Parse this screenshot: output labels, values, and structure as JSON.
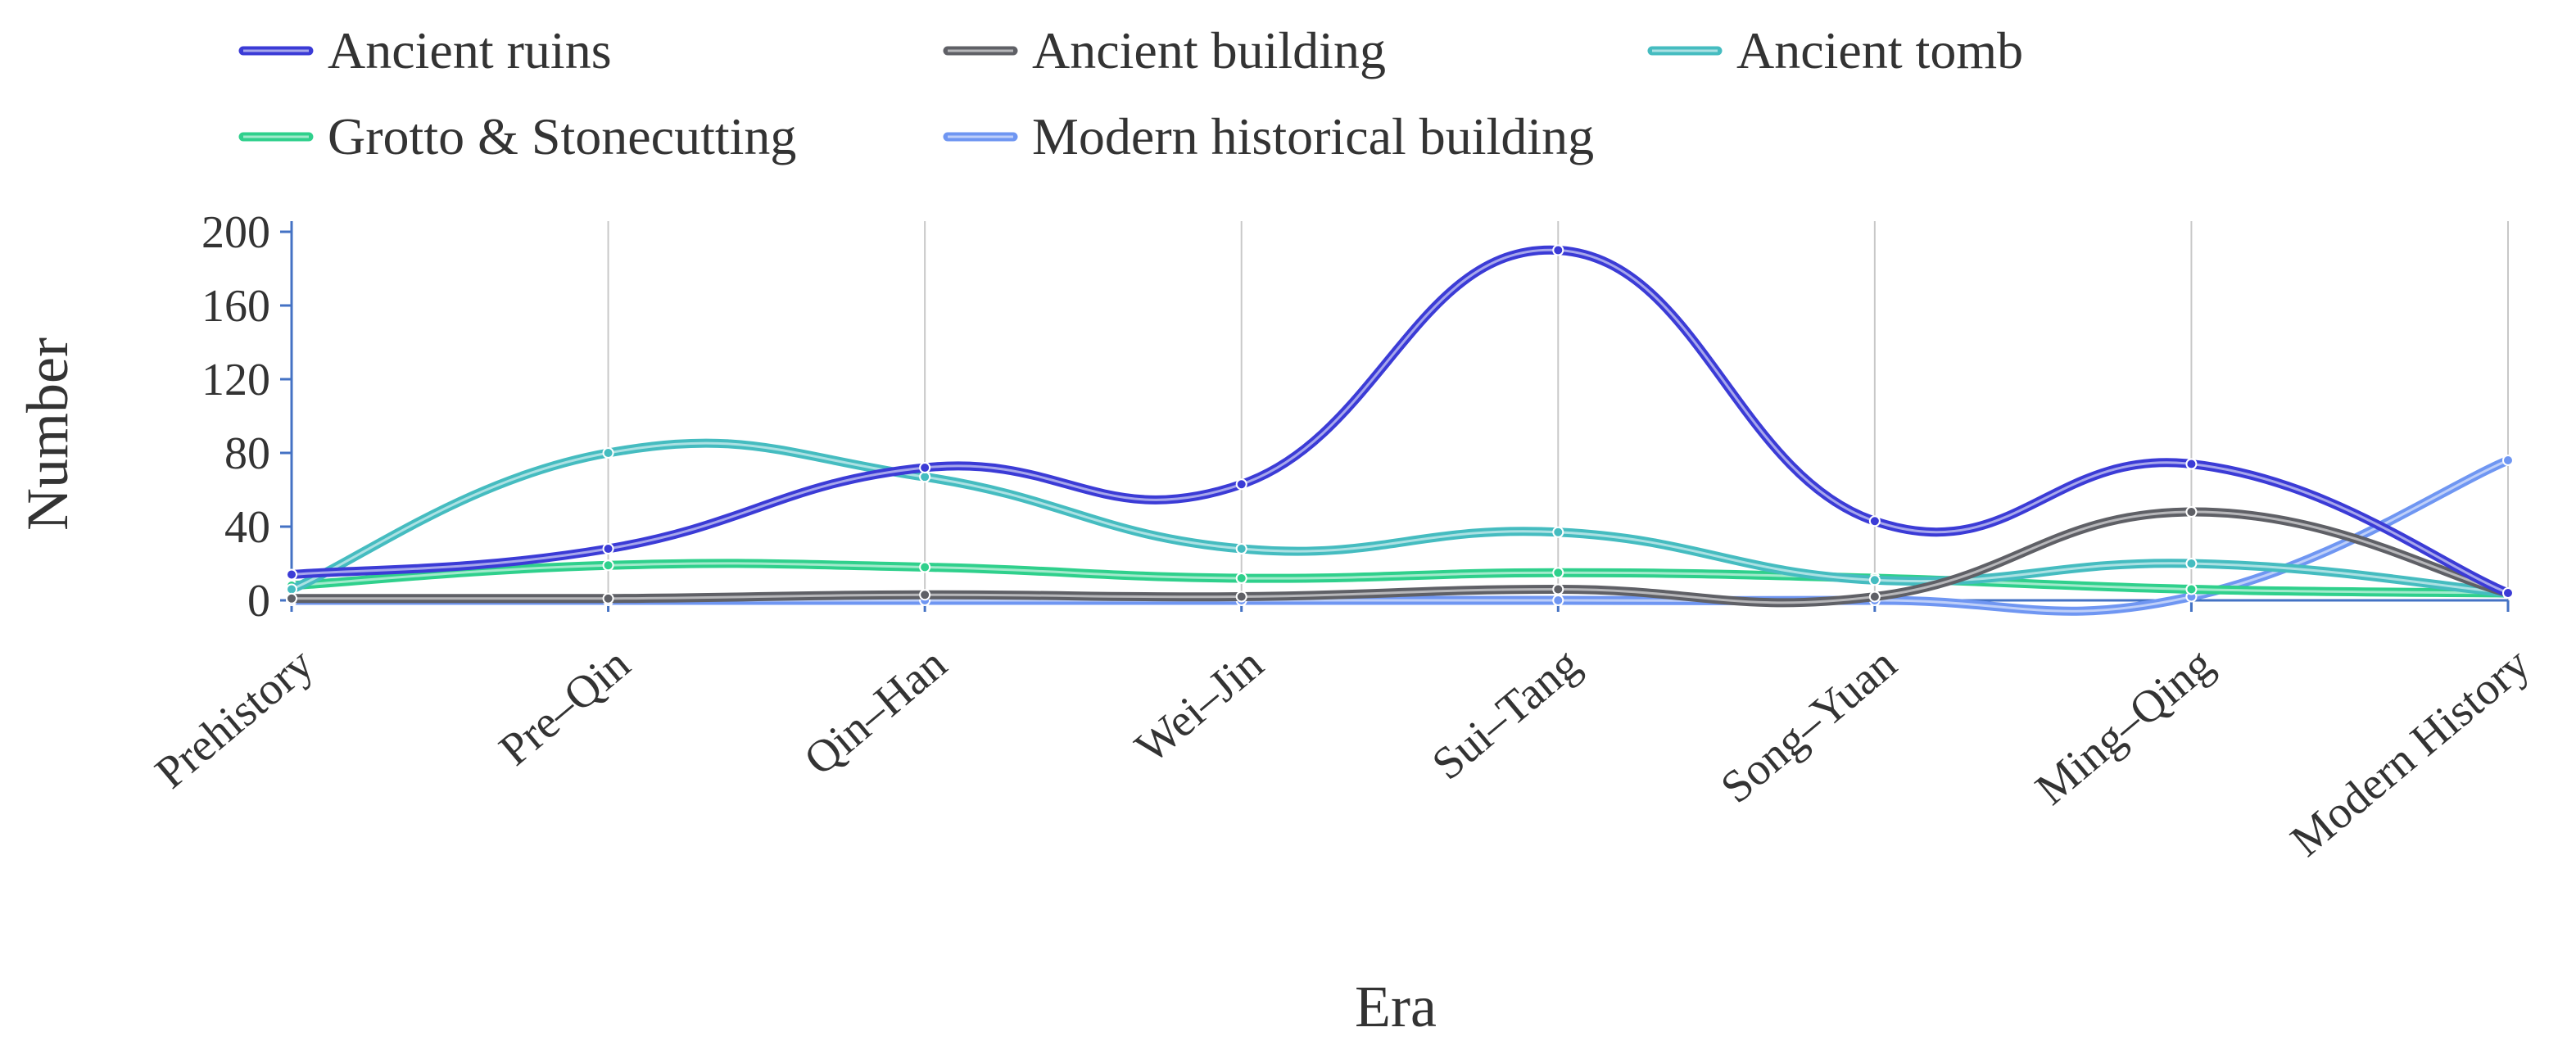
{
  "chart_data": {
    "type": "line",
    "smooth": true,
    "xlabel": "Era",
    "ylabel": "Number",
    "categories": [
      "Prehistory",
      "Pre–Qin",
      "Qin–Han",
      "Wei–Jin",
      "Sui–Tang",
      "Song–Yuan",
      "Ming–Qing",
      "Modern History"
    ],
    "ylim": [
      0,
      200
    ],
    "yticks": [
      0,
      40,
      80,
      120,
      160,
      200
    ],
    "grid": "vertical",
    "legend_position": "top-left",
    "series": [
      {
        "name": "Ancient ruins",
        "color": "#3b3bd6",
        "values": [
          14,
          28,
          72,
          63,
          190,
          43,
          74,
          4
        ]
      },
      {
        "name": "Ancient building",
        "color": "#5f6066",
        "values": [
          1,
          1,
          3,
          2,
          6,
          2,
          48,
          4
        ]
      },
      {
        "name": "Ancient tomb",
        "color": "#45bcc0",
        "values": [
          6,
          80,
          67,
          28,
          37,
          11,
          20,
          4
        ]
      },
      {
        "name": "Grotto & Stonecutting",
        "color": "#2fd08c",
        "values": [
          8,
          19,
          18,
          12,
          15,
          12,
          6,
          4
        ]
      },
      {
        "name": "Modern historical building",
        "color": "#6f96f2",
        "values": [
          0,
          0,
          0,
          0,
          0,
          0,
          2,
          76
        ]
      }
    ]
  }
}
